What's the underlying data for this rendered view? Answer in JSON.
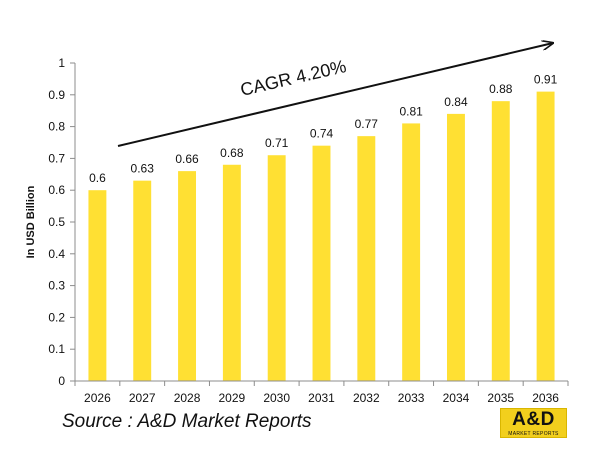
{
  "chart_data": {
    "type": "bar",
    "categories": [
      "2026",
      "2027",
      "2028",
      "2029",
      "2030",
      "2031",
      "2032",
      "2033",
      "2034",
      "2035",
      "2036"
    ],
    "values": [
      0.6,
      0.63,
      0.66,
      0.68,
      0.71,
      0.74,
      0.77,
      0.81,
      0.84,
      0.88,
      0.91
    ],
    "data_labels": [
      "0.6",
      "0.63",
      "0.66",
      "0.68",
      "0.71",
      "0.74",
      "0.77",
      "0.81",
      "0.84",
      "0.88",
      "0.91"
    ],
    "ylabel": "In USD Billion",
    "ylim": [
      0,
      1
    ],
    "yticks": [
      "0",
      "0.1",
      "0.2",
      "0.3",
      "0.4",
      "0.5",
      "0.6",
      "0.7",
      "0.8",
      "0.9",
      "1"
    ],
    "annotation": "CAGR 4.20%",
    "bar_color": "#ffe033",
    "grid": false,
    "legend": "none"
  },
  "source_text": "Source : A&D Market Reports",
  "logo": {
    "text": "A&D",
    "subtext": "MARKET REPORTS",
    "color": "#f2cf1d"
  }
}
